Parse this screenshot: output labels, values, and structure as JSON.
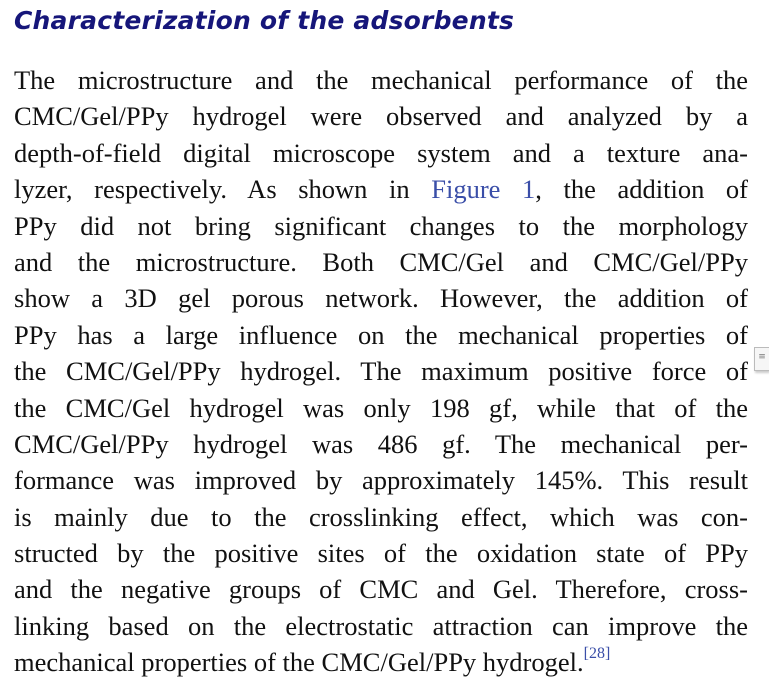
{
  "heading": "Characterization of the adsorbents",
  "lines": [
    "The microstructure and the mechanical performance of the",
    "CMC/Gel/PPy hydrogel were observed and analyzed by a",
    "depth-of-field digital microscope system and a texture ana-",
    {
      "pre": "lyzer, respectively. As shown in ",
      "link": "Figure 1",
      "post": ", the addition of"
    },
    "PPy did not bring significant changes to the morphology",
    "and the microstructure. Both CMC/Gel and CMC/Gel/PPy",
    "show a 3D gel porous network. However, the addition of",
    "PPy has a large influence on the mechanical properties of",
    "the CMC/Gel/PPy hydrogel. The maximum positive force of",
    "the CMC/Gel hydrogel was only 198 gf, while that of the",
    "CMC/Gel/PPy hydrogel was 486 gf. The mechanical per-",
    "formance was improved by approximately 145%. This result",
    "is mainly due to the crosslinking effect, which was con-",
    "structed by the positive sites of the oxidation state of PPy",
    "and the negative groups of CMC and Gel. Therefore, cross-",
    "linking based on the electrostatic attraction can improve the",
    {
      "pre": "mechanical properties of the CMC/Gel/PPy hydrogel.",
      "sup": "[28]"
    }
  ],
  "colors": {
    "heading": "#16167a",
    "link": "#3a4ea8"
  },
  "note_icon": "comment-note-icon"
}
